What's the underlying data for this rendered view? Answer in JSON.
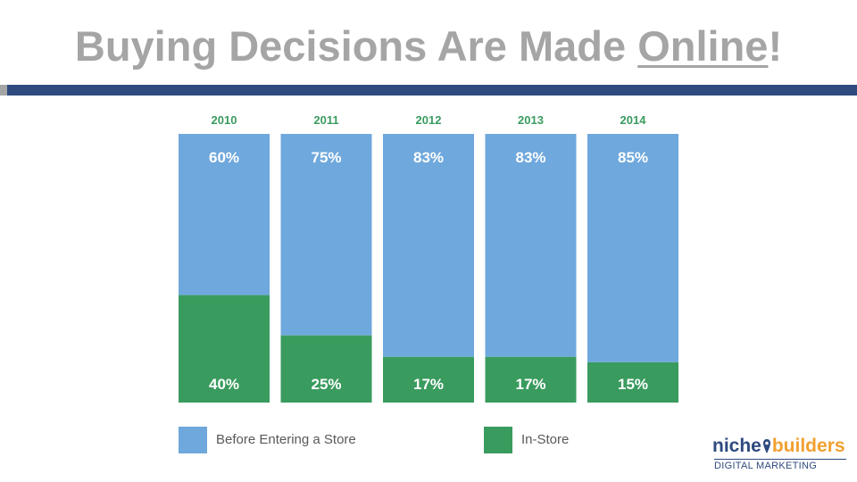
{
  "slide": {
    "title_part1": "Buying Decisions Are Made ",
    "title_highlight": "Online",
    "title_part2": "!"
  },
  "colors": {
    "before_store": "#6fa8dc",
    "in_store": "#3a9b5f",
    "title": "#a5a5a5",
    "band": "#2e4a7e",
    "year_label": "#3a9b5f"
  },
  "chart_data": {
    "type": "bar",
    "stacked": true,
    "categories": [
      "2010",
      "2011",
      "2012",
      "2013",
      "2014"
    ],
    "series": [
      {
        "name": "Before Entering a Store",
        "values": [
          60,
          75,
          83,
          83,
          85
        ],
        "labels": [
          "60%",
          "75%",
          "83%",
          "83%",
          "85%"
        ]
      },
      {
        "name": "In-Store",
        "values": [
          40,
          25,
          17,
          17,
          15
        ],
        "labels": [
          "40%",
          "25%",
          "17%",
          "17%",
          "15%"
        ]
      }
    ],
    "ylim": [
      0,
      100
    ],
    "legend_position": "bottom",
    "grid": false
  },
  "legend": [
    {
      "label": "Before Entering a Store",
      "icon": "blue-square-icon"
    },
    {
      "label": "In-Store",
      "icon": "green-square-icon"
    }
  ],
  "logo": {
    "word1": "niche",
    "word2": "builders",
    "subtitle": "DIGITAL MARKETING",
    "icon": "map-pin-icon"
  }
}
